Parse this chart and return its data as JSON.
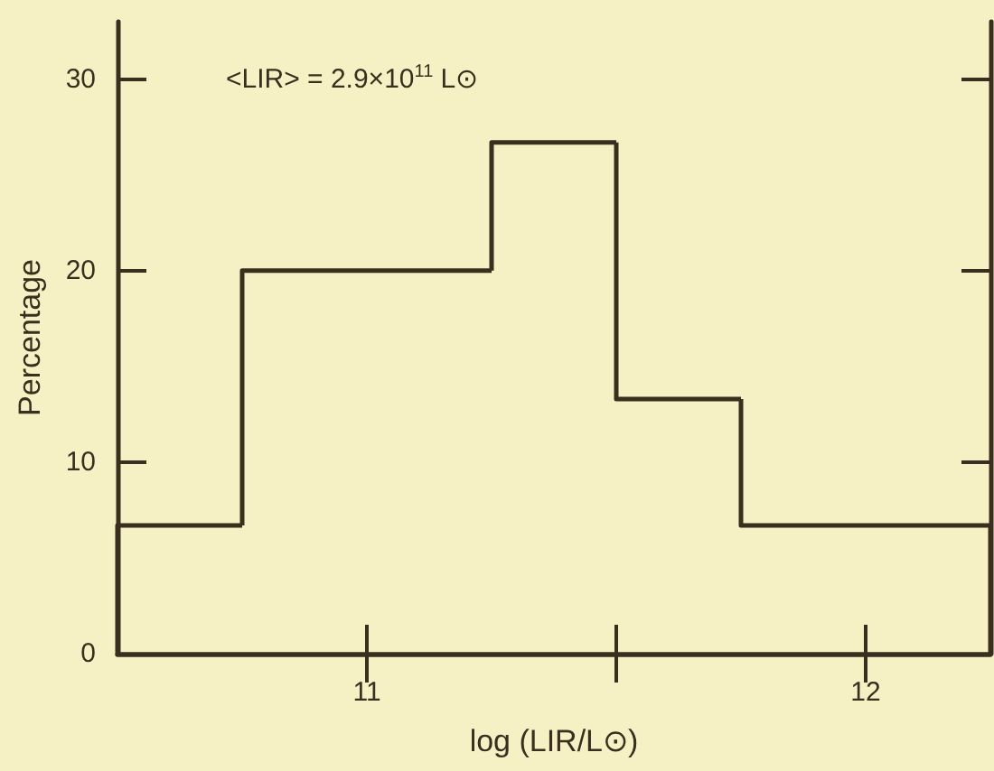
{
  "chart_data": {
    "type": "histogram",
    "xlabel": "log (LIR/L⊙)",
    "ylabel": "Percentage",
    "annotations": [
      "<LIR> = 2.9×10$^{11}$ L⊙"
    ],
    "bins": [
      10.5,
      10.75,
      11.25,
      11.5,
      11.75,
      12.25
    ],
    "values": [
      6.7,
      20,
      26.7,
      13.3,
      6.7
    ],
    "color": "#3a2e1e",
    "xlim": [
      10.5,
      12.25
    ],
    "xticks": [
      11,
      {
        "value": 11.5,
        "label": null
      },
      12
    ],
    "ylim": [
      0,
      33
    ],
    "yticks": [
      0,
      10,
      20,
      30
    ],
    "grid": false
  }
}
